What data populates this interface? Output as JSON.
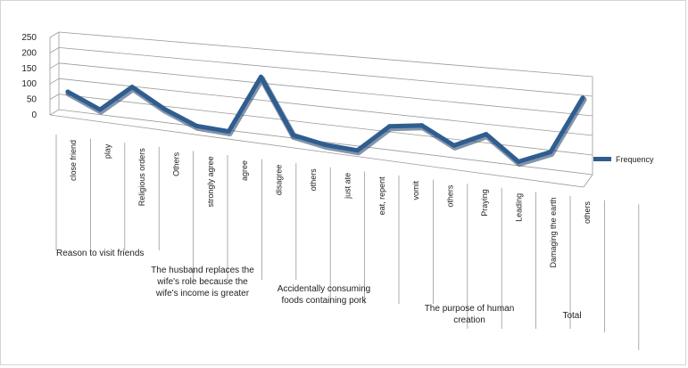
{
  "chart_data": {
    "type": "line",
    "title": "",
    "xlabel": "",
    "ylabel": "",
    "ylim": [
      0,
      250
    ],
    "yticks": [
      "250",
      "200",
      "150",
      "100",
      "50",
      "0"
    ],
    "grid": true,
    "legend_position": "right",
    "series": [
      {
        "name": "Frequency",
        "color": "#2f5d8f",
        "values": [
          75,
          30,
          112,
          55,
          15,
          10,
          181,
          22,
          5,
          0,
          78,
          90,
          45,
          85,
          22,
          57,
          205
        ]
      }
    ],
    "categories": [
      "close friend",
      "play",
      "Religious orders",
      "Others",
      "strongly agree",
      "agree",
      "disagree",
      "others",
      "just ate",
      "eat, repent",
      "vomit",
      "others",
      "Praying",
      "Leading",
      "Damaging the earth",
      "others",
      ""
    ],
    "groups": [
      {
        "label_lines": [
          "Reason to visit friends"
        ]
      },
      {
        "label_lines": [
          "The husband replaces the",
          "wife's role because the",
          "wife's income is greater"
        ]
      },
      {
        "label_lines": [
          "Accidentally consuming",
          "foods containing pork"
        ]
      },
      {
        "label_lines": [
          "The purpose of human",
          "creation"
        ]
      },
      {
        "label_lines": [
          "Total"
        ]
      }
    ]
  }
}
